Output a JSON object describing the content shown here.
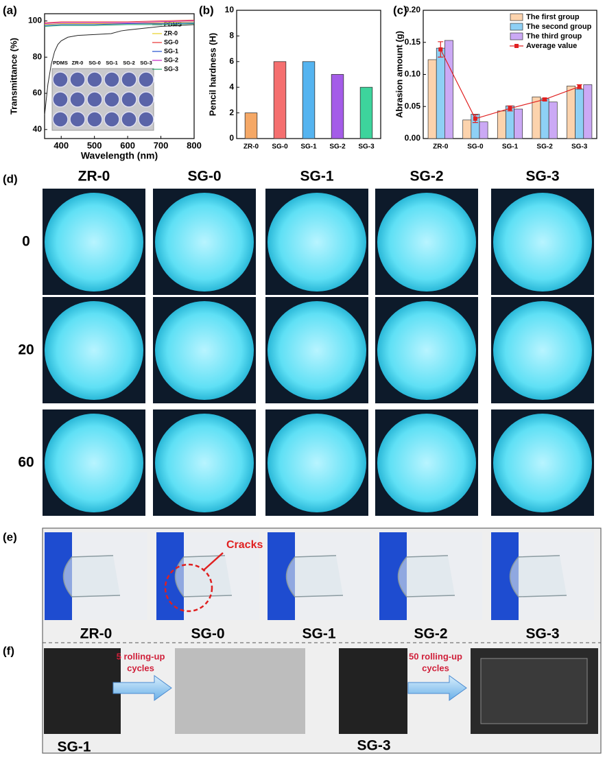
{
  "chart_data": [
    {
      "type": "line",
      "xlabel": "Wavelength (nm)",
      "ylabel": "Transmittance (%)",
      "xlim": [
        350,
        800
      ],
      "xticks": [
        400,
        500,
        600,
        700,
        800
      ],
      "ylim": [
        35,
        104
      ],
      "yticks": [
        40,
        60,
        80,
        100
      ],
      "inset_labels": [
        "PDMS",
        "ZR-0",
        "SG-0",
        "SG-1",
        "SG-2",
        "SG-3"
      ],
      "series": [
        {
          "name": "PDMS",
          "color": "#222222",
          "x": [
            350,
            360,
            370,
            380,
            390,
            400,
            420,
            450,
            500,
            550,
            580,
            600,
            650,
            700,
            750,
            800
          ],
          "values": [
            48,
            65,
            76,
            83,
            87,
            89,
            91,
            92,
            92.5,
            93,
            94.5,
            95,
            96,
            97,
            97.5,
            98
          ]
        },
        {
          "name": "ZR-0",
          "color": "#e8d020",
          "x": [
            350,
            400,
            500,
            600,
            700,
            800
          ],
          "values": [
            98,
            98.5,
            98.5,
            98.5,
            99,
            99.5
          ]
        },
        {
          "name": "SG-0",
          "color": "#e83030",
          "x": [
            350,
            400,
            500,
            600,
            700,
            800
          ],
          "values": [
            99,
            99.5,
            99.5,
            99.5,
            100,
            100.5
          ]
        },
        {
          "name": "SG-1",
          "color": "#2050d0",
          "x": [
            350,
            400,
            500,
            600,
            700,
            800
          ],
          "values": [
            97.5,
            98,
            98,
            98.5,
            98.5,
            99
          ]
        },
        {
          "name": "SG-2",
          "color": "#c020c0",
          "x": [
            350,
            400,
            500,
            600,
            700,
            800
          ],
          "values": [
            98.5,
            99,
            99,
            99,
            99.5,
            100
          ]
        },
        {
          "name": "SG-3",
          "color": "#20a060",
          "x": [
            350,
            400,
            500,
            600,
            700,
            800
          ],
          "values": [
            97,
            97.5,
            97.5,
            98,
            98,
            98.5
          ]
        }
      ]
    },
    {
      "type": "bar",
      "ylabel": "Pencil hardness (H)",
      "categories": [
        "ZR-0",
        "SG-0",
        "SG-1",
        "SG-2",
        "SG-3"
      ],
      "values": [
        2,
        6,
        6,
        5,
        4
      ],
      "colors": [
        "#f5a866",
        "#f56f6f",
        "#55b4f0",
        "#a45ce8",
        "#3dd49c"
      ],
      "ylim": [
        0,
        10
      ],
      "yticks": [
        0,
        2,
        4,
        6,
        8,
        10
      ]
    },
    {
      "type": "grouped_bar",
      "ylabel": "Abrasion amount (g)",
      "categories": [
        "ZR-0",
        "SG-0",
        "SG-1",
        "SG-2",
        "SG-3"
      ],
      "ylim": [
        0,
        0.2
      ],
      "yticks": [
        {
          "value": 0,
          "label": "0.00"
        },
        {
          "value": 0.05,
          "label": "0.05"
        },
        {
          "value": 0.1,
          "label": "0.10"
        },
        {
          "value": 0.15,
          "label": "0.15"
        },
        {
          "value": 0.2,
          "label": "0.20"
        }
      ],
      "series": [
        {
          "name": "The first group",
          "color": "#fcd3ad",
          "values": [
            0.123,
            0.029,
            0.043,
            0.065,
            0.082
          ]
        },
        {
          "name": "The second group",
          "color": "#8ed0f5",
          "values": [
            0.141,
            0.038,
            0.051,
            0.062,
            0.077
          ]
        },
        {
          "name": "The third group",
          "color": "#cba9f5",
          "values": [
            0.153,
            0.026,
            0.046,
            0.057,
            0.084
          ]
        },
        {
          "name": "Average value",
          "type": "line",
          "color": "#e02020",
          "values": [
            0.139,
            0.031,
            0.047,
            0.061,
            0.081
          ],
          "errors": [
            0.012,
            0.006,
            0.004,
            0.002,
            0.003
          ]
        }
      ]
    }
  ],
  "panel_labels": [
    "(a)",
    "(b)",
    "(c)",
    "(d)",
    "(e)",
    "(f)"
  ],
  "figure_d": {
    "columns": [
      "ZR-0",
      "SG-0",
      "SG-1",
      "SG-2",
      "SG-3"
    ],
    "rows": [
      "0",
      "20",
      "60"
    ]
  },
  "figure_e": {
    "labels": [
      "ZR-0",
      "SG-0",
      "SG-1",
      "SG-2",
      "SG-3"
    ],
    "annotation": "Cracks"
  },
  "figure_f": {
    "labels": [
      "SG-1",
      "SG-3"
    ],
    "arrows": [
      [
        "5 rolling-up",
        "cycles"
      ],
      [
        "50 rolling-up",
        "cycles"
      ]
    ]
  }
}
